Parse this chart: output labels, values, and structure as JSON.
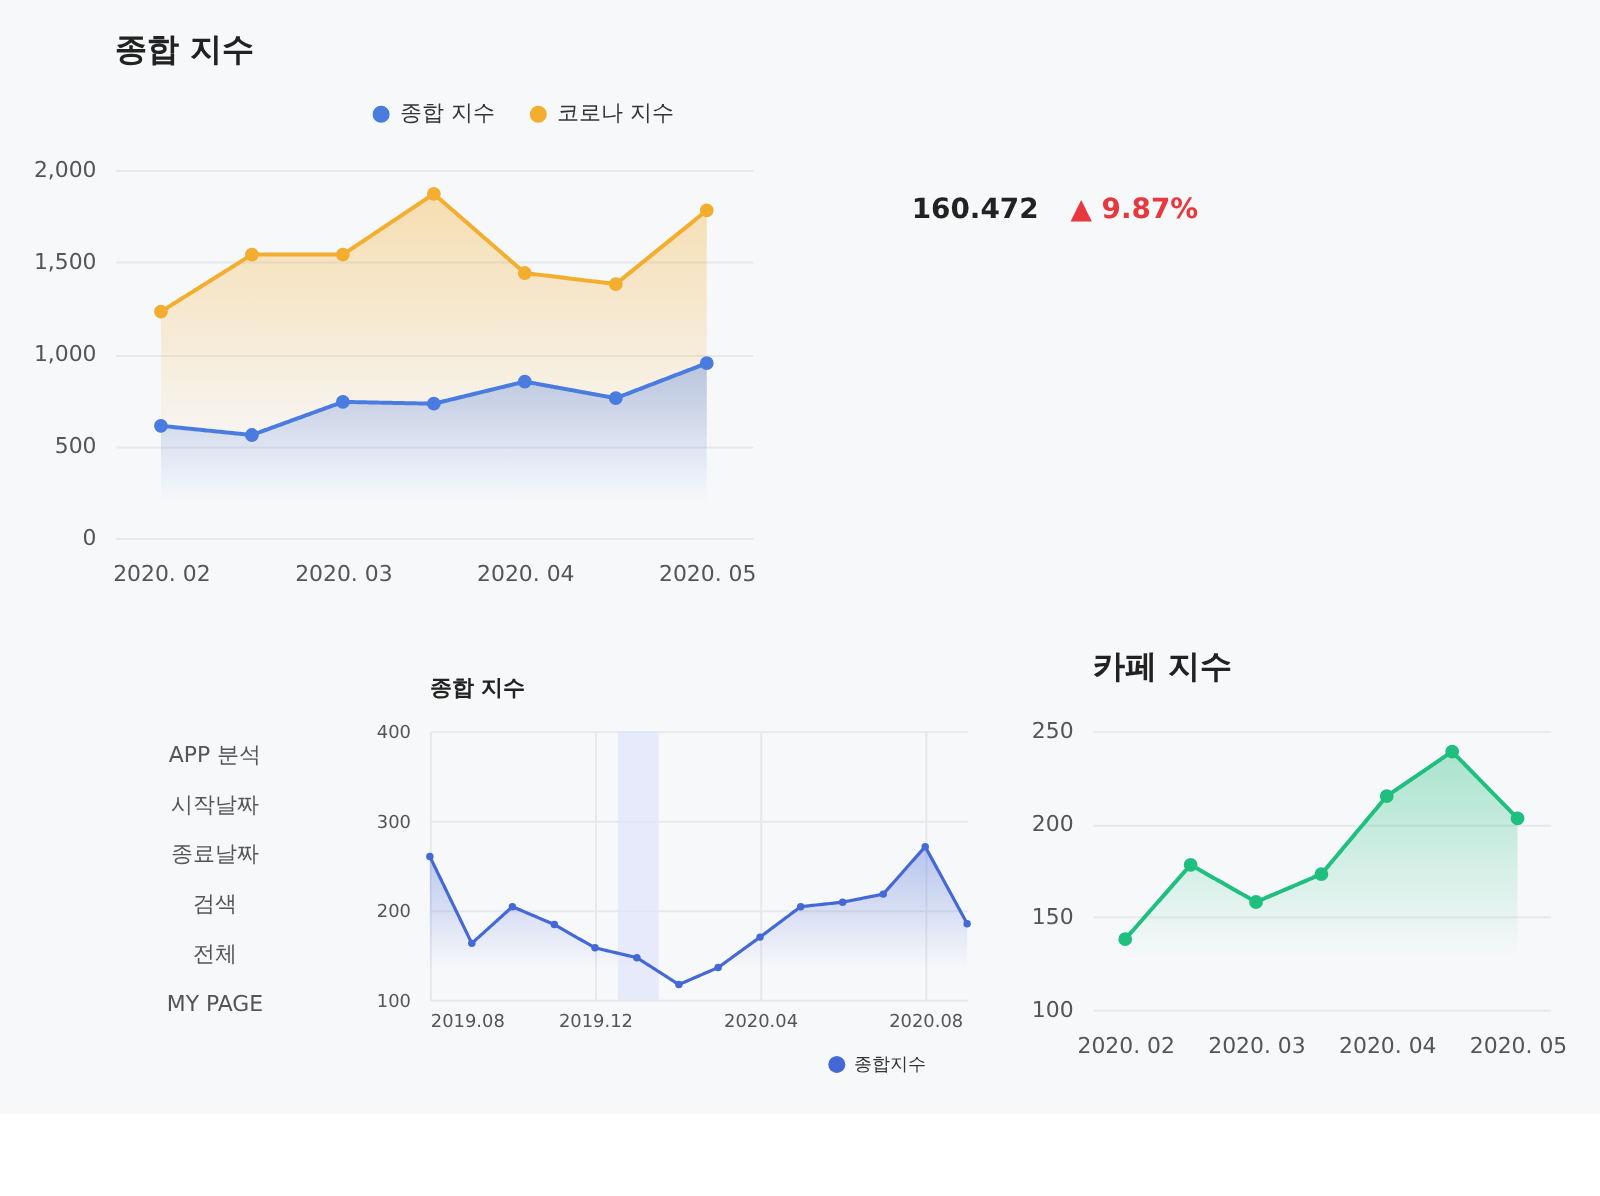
{
  "chart_data": [
    {
      "type": "area",
      "title": "종합 지수",
      "categories": [
        "2020. 02",
        null,
        "2020. 03",
        null,
        "2020. 04",
        null,
        "2020. 05"
      ],
      "series": [
        {
          "name": "종합 지수",
          "color": "#4a7bdf",
          "values": [
            610,
            560,
            740,
            730,
            850,
            760,
            950
          ]
        },
        {
          "name": "코로나 지수",
          "color": "#f3ae2f",
          "values": [
            1230,
            1540,
            1540,
            1870,
            1440,
            1380,
            1780
          ]
        }
      ],
      "ylim": [
        0,
        2000
      ],
      "yticks": [
        0,
        500,
        {
          "value": 1000,
          "label": "1,000"
        },
        {
          "value": 1500,
          "label": "1,500"
        },
        {
          "value": 2000,
          "label": "2,000"
        }
      ],
      "grid": "y",
      "legend": "top right",
      "marker": "circle"
    },
    {
      "type": "other",
      "annotations": [
        "160.472",
        "▲ 9.87%"
      ],
      "colors": [
        "#222222",
        "#e8373d"
      ]
    },
    {
      "type": "other",
      "annotations": [
        "APP 분석",
        "시작날짜",
        "종료날짜",
        "검색",
        "전체",
        "MY PAGE"
      ]
    },
    {
      "type": "area",
      "title": "종합 지수",
      "x": [
        "2019-08",
        "2019-09",
        "2019-10",
        "2019-11",
        "2019-12",
        "2020-01",
        "2020-02",
        "2020-03",
        "2020-04",
        "2020-05",
        "2020-06",
        "2020-07",
        "2020-08",
        "2020-09"
      ],
      "series": [
        {
          "name": "종합지수",
          "color": "#4468d6",
          "values": [
            260,
            163,
            204,
            184,
            158,
            147,
            117,
            136,
            170,
            204,
            209,
            218,
            271,
            185
          ]
        }
      ],
      "xlim": [
        "2019-08",
        "2020-09"
      ],
      "xticks": [
        {
          "value": "2019-08",
          "label": "2019.08"
        },
        {
          "value": "2019-12",
          "label": "2019.12"
        },
        {
          "value": "2020-04",
          "label": "2020.04"
        },
        {
          "value": "2020-08",
          "label": "2020.08"
        }
      ],
      "ylim": [
        100,
        400
      ],
      "yticks": [
        100,
        200,
        300,
        400
      ],
      "bands": [
        {
          "axis": "x",
          "from": "2019-12-18",
          "to": "2020-01-17",
          "color": "#dfe4fa"
        }
      ],
      "grid": true,
      "legend": "bottom right",
      "marker": "circle"
    },
    {
      "type": "area",
      "title": "카페 지수",
      "categories": [
        "2020. 02",
        null,
        "2020. 03",
        null,
        "2020. 04",
        null,
        "2020. 05"
      ],
      "series": [
        {
          "color": "#1fbf7f",
          "values": [
            138,
            178,
            158,
            173,
            215,
            239,
            203
          ]
        }
      ],
      "ylim": [
        100,
        250
      ],
      "yticks": [
        100,
        150,
        200,
        250
      ],
      "grid": "y",
      "marker": "circle"
    }
  ]
}
